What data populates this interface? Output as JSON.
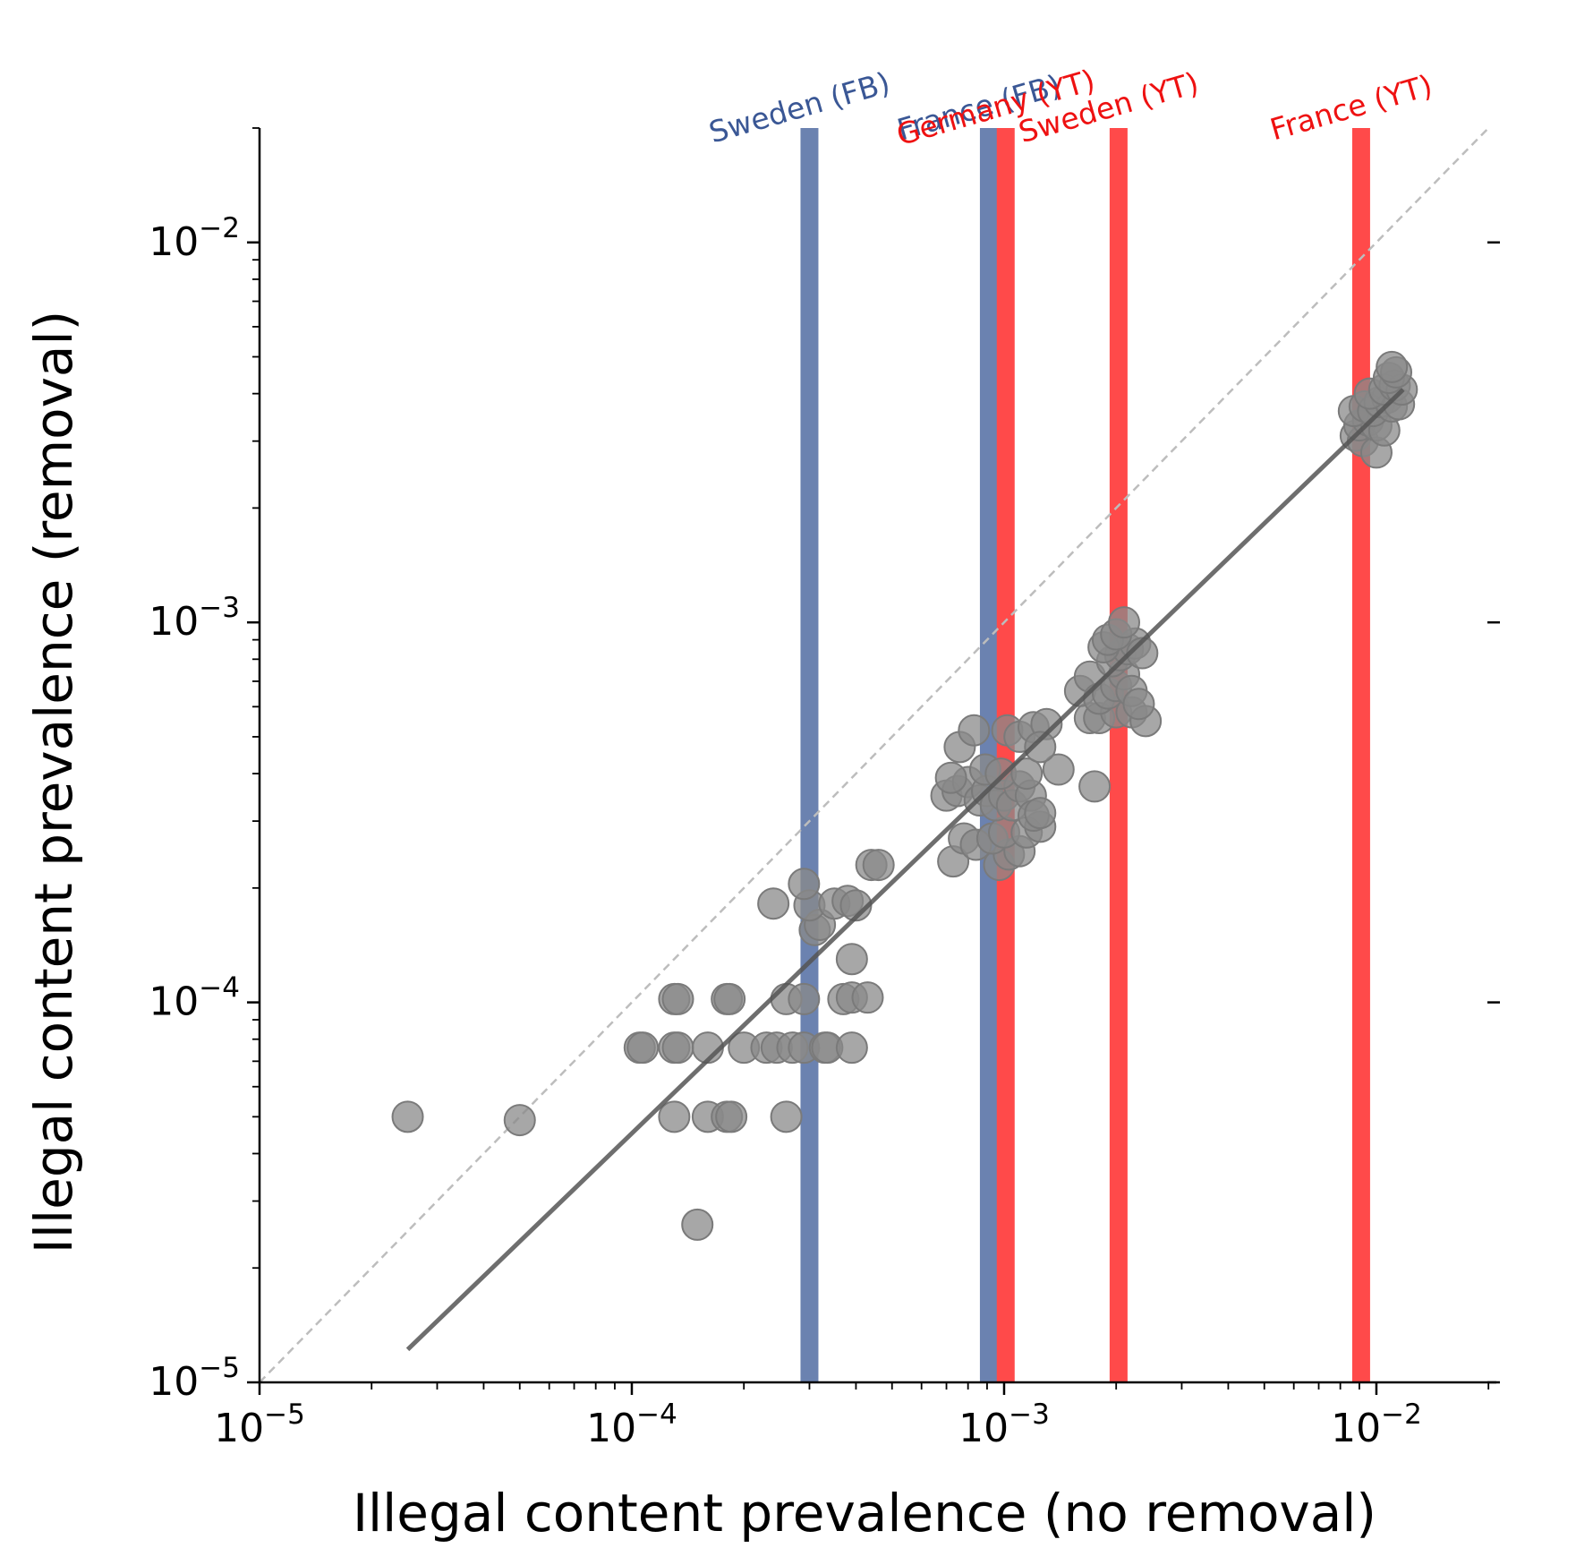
{
  "chart_data": {
    "type": "scatter",
    "title": "",
    "xlabel": "Illegal content prevalence (no removal)",
    "ylabel": "Illegal content prevalence (removal)",
    "xscale": "log",
    "yscale": "log",
    "xlim": [
      1e-05,
      0.021
    ],
    "ylim": [
      1e-05,
      0.02
    ],
    "x_ticks": [
      1e-05,
      0.0001,
      0.001,
      0.01
    ],
    "y_ticks": [
      1e-05,
      0.0001,
      0.001,
      0.01
    ],
    "x_tick_labels": [
      {
        "base": "10",
        "exp": "−5"
      },
      {
        "base": "10",
        "exp": "−4"
      },
      {
        "base": "10",
        "exp": "−3"
      },
      {
        "base": "10",
        "exp": "−2"
      }
    ],
    "y_tick_labels": [
      {
        "base": "10",
        "exp": "−5"
      },
      {
        "base": "10",
        "exp": "−4"
      },
      {
        "base": "10",
        "exp": "−3"
      },
      {
        "base": "10",
        "exp": "−2"
      }
    ],
    "grid": false,
    "identity_line": {
      "style": "dashed",
      "color": "#bdbdbd"
    },
    "fit_line": {
      "x": [
        2.5e-05,
        0.0118
      ],
      "y": [
        1.22e-05,
        0.0041
      ],
      "color": "#555555"
    },
    "vertical_lines": [
      {
        "label": "Sweden (FB)",
        "x": 0.0003,
        "color": "#6b82b0",
        "text_color": "#3a5795"
      },
      {
        "label": "France (FB)",
        "x": 0.00091,
        "color": "#6b82b0",
        "text_color": "#3a5795"
      },
      {
        "label": "Germany (YT)",
        "x": 0.00101,
        "color": "#ff4a4a",
        "text_color": "#ee1111"
      },
      {
        "label": "Sweden (YT)",
        "x": 0.00203,
        "color": "#ff4a4a",
        "text_color": "#ee1111"
      },
      {
        "label": "France (YT)",
        "x": 0.0091,
        "color": "#ff4a4a",
        "text_color": "#ee1111"
      }
    ],
    "points_color": "#8a8a8a",
    "series": [
      {
        "values": [
          [
            2.5e-05,
            5e-05
          ],
          [
            5e-05,
            4.9e-05
          ],
          [
            0.00015,
            2.6e-05
          ],
          [
            0.00013,
            5e-05
          ],
          [
            0.00016,
            5e-05
          ],
          [
            0.00018,
            5e-05
          ],
          [
            0.000185,
            5e-05
          ],
          [
            0.00026,
            5e-05
          ],
          [
            0.000105,
            7.6e-05
          ],
          [
            0.000107,
            7.6e-05
          ],
          [
            0.00013,
            7.6e-05
          ],
          [
            0.000133,
            7.6e-05
          ],
          [
            0.00016,
            7.6e-05
          ],
          [
            0.0002,
            7.6e-05
          ],
          [
            0.00023,
            7.6e-05
          ],
          [
            0.000245,
            7.6e-05
          ],
          [
            0.00027,
            7.6e-05
          ],
          [
            0.00029,
            7.6e-05
          ],
          [
            0.00033,
            7.6e-05
          ],
          [
            0.000335,
            7.6e-05
          ],
          [
            0.00039,
            7.6e-05
          ],
          [
            0.00013,
            0.000102
          ],
          [
            0.000133,
            0.000102
          ],
          [
            0.00018,
            0.000102
          ],
          [
            0.000183,
            0.000102
          ],
          [
            0.00026,
            0.000102
          ],
          [
            0.00029,
            0.000102
          ],
          [
            0.00037,
            0.000102
          ],
          [
            0.00039,
            0.000103
          ],
          [
            0.00043,
            0.000103
          ],
          [
            0.00039,
            0.00013
          ],
          [
            0.00031,
            0.000155
          ],
          [
            0.00032,
            0.00016
          ],
          [
            0.00024,
            0.000182
          ],
          [
            0.0003,
            0.00018
          ],
          [
            0.00035,
            0.000182
          ],
          [
            0.00038,
            0.000185
          ],
          [
            0.0004,
            0.00018
          ],
          [
            0.00029,
            0.000205
          ],
          [
            0.00044,
            0.00023
          ],
          [
            0.00046,
            0.00023
          ],
          [
            0.00073,
            0.000235
          ],
          [
            0.00097,
            0.00023
          ],
          [
            0.00103,
            0.000245
          ],
          [
            0.0011,
            0.00025
          ],
          [
            0.00078,
            0.00027
          ],
          [
            0.00084,
            0.00026
          ],
          [
            0.00093,
            0.00027
          ],
          [
            0.001,
            0.00028
          ],
          [
            0.00115,
            0.00028
          ],
          [
            0.00125,
            0.00029
          ],
          [
            0.0007,
            0.00035
          ],
          [
            0.00075,
            0.00036
          ],
          [
            0.0008,
            0.00038
          ],
          [
            0.00086,
            0.00034
          ],
          [
            0.0009,
            0.00036
          ],
          [
            0.00095,
            0.00033
          ],
          [
            0.001,
            0.00035
          ],
          [
            0.00105,
            0.00033
          ],
          [
            0.0011,
            0.00037
          ],
          [
            0.00118,
            0.00035
          ],
          [
            0.0012,
            0.00031
          ],
          [
            0.00125,
            0.000315
          ],
          [
            0.00072,
            0.00039
          ],
          [
            0.00089,
            0.00041
          ],
          [
            0.00098,
            0.0004
          ],
          [
            0.00115,
            0.0004
          ],
          [
            0.0014,
            0.00041
          ],
          [
            0.00076,
            0.00047
          ],
          [
            0.00083,
            0.00052
          ],
          [
            0.00102,
            0.00052
          ],
          [
            0.0011,
            0.0005
          ],
          [
            0.0012,
            0.00053
          ],
          [
            0.0013,
            0.00054
          ],
          [
            0.00125,
            0.00047
          ],
          [
            0.00175,
            0.00037
          ],
          [
            0.0017,
            0.00056
          ],
          [
            0.0018,
            0.00056
          ],
          [
            0.002,
            0.00058
          ],
          [
            0.0022,
            0.00058
          ],
          [
            0.0024,
            0.00055
          ],
          [
            0.0016,
            0.00066
          ],
          [
            0.0017,
            0.00072
          ],
          [
            0.0018,
            0.00063
          ],
          [
            0.0019,
            0.00065
          ],
          [
            0.002,
            0.00068
          ],
          [
            0.0021,
            0.00073
          ],
          [
            0.0022,
            0.00066
          ],
          [
            0.0023,
            0.00061
          ],
          [
            0.00195,
            0.00079
          ],
          [
            0.00205,
            0.00082
          ],
          [
            0.00215,
            0.00085
          ],
          [
            0.00225,
            0.00088
          ],
          [
            0.00235,
            0.00083
          ],
          [
            0.00185,
            0.00086
          ],
          [
            0.0019,
            0.0009
          ],
          [
            0.002,
            0.00093
          ],
          [
            0.0021,
            0.001
          ],
          [
            0.0088,
            0.0031
          ],
          [
            0.0092,
            0.003
          ],
          [
            0.01,
            0.0028
          ],
          [
            0.009,
            0.0033
          ],
          [
            0.0095,
            0.0034
          ],
          [
            0.01,
            0.0033
          ],
          [
            0.0105,
            0.0032
          ],
          [
            0.0087,
            0.0036
          ],
          [
            0.0093,
            0.0037
          ],
          [
            0.0098,
            0.0036
          ],
          [
            0.0102,
            0.0038
          ],
          [
            0.0107,
            0.0039
          ],
          [
            0.011,
            0.0037
          ],
          [
            0.0115,
            0.00375
          ],
          [
            0.0096,
            0.004
          ],
          [
            0.0105,
            0.0041
          ],
          [
            0.0112,
            0.0042
          ],
          [
            0.0117,
            0.0041
          ],
          [
            0.0108,
            0.0044
          ],
          [
            0.0113,
            0.00455
          ],
          [
            0.011,
            0.0047
          ]
        ]
      }
    ]
  }
}
